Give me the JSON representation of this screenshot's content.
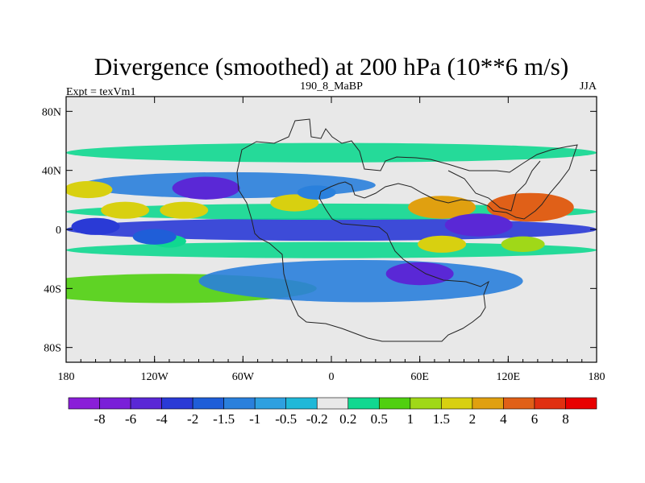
{
  "chart_data": {
    "type": "heatmap",
    "title": "Divergence (smoothed) at 200 hPa (10**6 m/s)",
    "left_string": "Expt = texVm1",
    "center_string": "190_8_MaBP",
    "right_string": "JJA",
    "x_ticks": [
      {
        "value": -180,
        "label": "180"
      },
      {
        "value": -120,
        "label": "120W"
      },
      {
        "value": -60,
        "label": "60W"
      },
      {
        "value": 0,
        "label": "0"
      },
      {
        "value": 60,
        "label": "60E"
      },
      {
        "value": 120,
        "label": "120E"
      },
      {
        "value": 180,
        "label": "180"
      }
    ],
    "y_ticks": [
      {
        "value": 80,
        "label": "80N"
      },
      {
        "value": 40,
        "label": "40N"
      },
      {
        "value": 0,
        "label": "0"
      },
      {
        "value": -40,
        "label": "40S"
      },
      {
        "value": -80,
        "label": "80S"
      }
    ],
    "xlim": [
      -180,
      180
    ],
    "ylim": [
      -90,
      90
    ],
    "colorbar": {
      "levels": [
        "-8",
        "-6",
        "-4",
        "-2",
        "-1.5",
        "-1",
        "-0.5",
        "-0.2",
        "0.2",
        "0.5",
        "1",
        "1.5",
        "2",
        "4",
        "6",
        "8"
      ],
      "colors": [
        "#8a1fd8",
        "#7a1fd8",
        "#5a28d6",
        "#2a3ad6",
        "#1f5ed8",
        "#2a80dc",
        "#2ea0e0",
        "#20b8d8",
        "#e8e8e8",
        "#10d890",
        "#50d010",
        "#a0d818",
        "#d8d010",
        "#e0a010",
        "#e06018",
        "#e03010",
        "#e80000"
      ]
    },
    "fields": [
      {
        "lon": -165,
        "lat": 27,
        "value": 2
      },
      {
        "lon": -140,
        "lat": 13,
        "value": 2
      },
      {
        "lon": -100,
        "lat": 13,
        "value": 2
      },
      {
        "lon": -25,
        "lat": 18,
        "value": 2
      },
      {
        "lon": 75,
        "lat": 15,
        "value": 4
      },
      {
        "lon": 135,
        "lat": 15,
        "value": 6
      },
      {
        "lon": 75,
        "lat": -10,
        "value": 2
      },
      {
        "lon": 130,
        "lat": -10,
        "value": 1.5
      },
      {
        "lon": -110,
        "lat": -8,
        "value": 0.5
      },
      {
        "lon": -85,
        "lat": 28,
        "value": -4
      },
      {
        "lon": -120,
        "lat": -5,
        "value": -1.5
      },
      {
        "lon": 60,
        "lat": -30,
        "value": -4
      },
      {
        "lon": 100,
        "lat": 3,
        "value": -4
      },
      {
        "lon": -160,
        "lat": 2,
        "value": -2
      },
      {
        "lon": -10,
        "lat": 25,
        "value": -1
      }
    ]
  }
}
